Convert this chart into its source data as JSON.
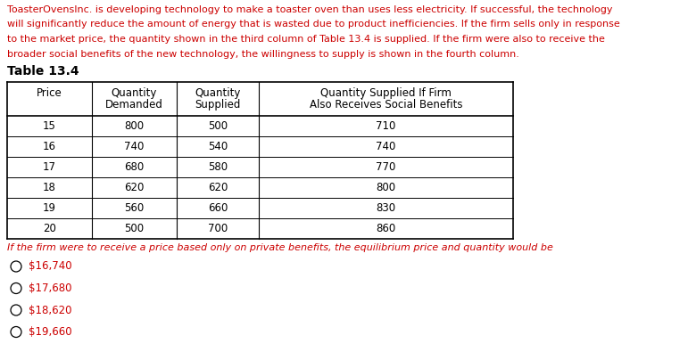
{
  "paragraph_lines": [
    "ToasterOvensInc. is developing technology to make a toaster oven than uses less electricity. If successful, the technology",
    "will significantly reduce the amount of energy that is wasted due to product inefficiencies. If the firm sells only in response",
    "to the market price, the quantity shown in the third column of Table 13.4 is supplied. If the firm were also to receive the",
    "broader social benefits of the new technology, the willingness to supply is shown in the fourth column."
  ],
  "paragraph_color": "#cc0000",
  "table_title": "Table 13.4",
  "col_headers_line1": [
    "Price",
    "Quantity",
    "Quantity",
    "Quantity Supplied If Firm"
  ],
  "col_headers_line2": [
    "",
    "Demanded",
    "Supplied",
    "Also Receives Social Benefits"
  ],
  "rows": [
    [
      "15",
      "800",
      "500",
      "710"
    ],
    [
      "16",
      "740",
      "540",
      "740"
    ],
    [
      "17",
      "680",
      "580",
      "770"
    ],
    [
      "18",
      "620",
      "620",
      "800"
    ],
    [
      "19",
      "560",
      "660",
      "830"
    ],
    [
      "20",
      "500",
      "700",
      "860"
    ]
  ],
  "question": "If the firm were to receive a price based only on private benefits, the equilibrium price and quantity would be",
  "question_color": "#cc0000",
  "options": [
    "$16,740",
    "$17,680",
    "$18,620",
    "$19,660"
  ],
  "options_color": "#cc0000",
  "bg_color": "#ffffff",
  "text_color": "#000000",
  "table_line_color": "#000000",
  "para_font_size": 8.0,
  "table_font_size": 8.5,
  "question_font_size": 8.0,
  "options_font_size": 8.5
}
